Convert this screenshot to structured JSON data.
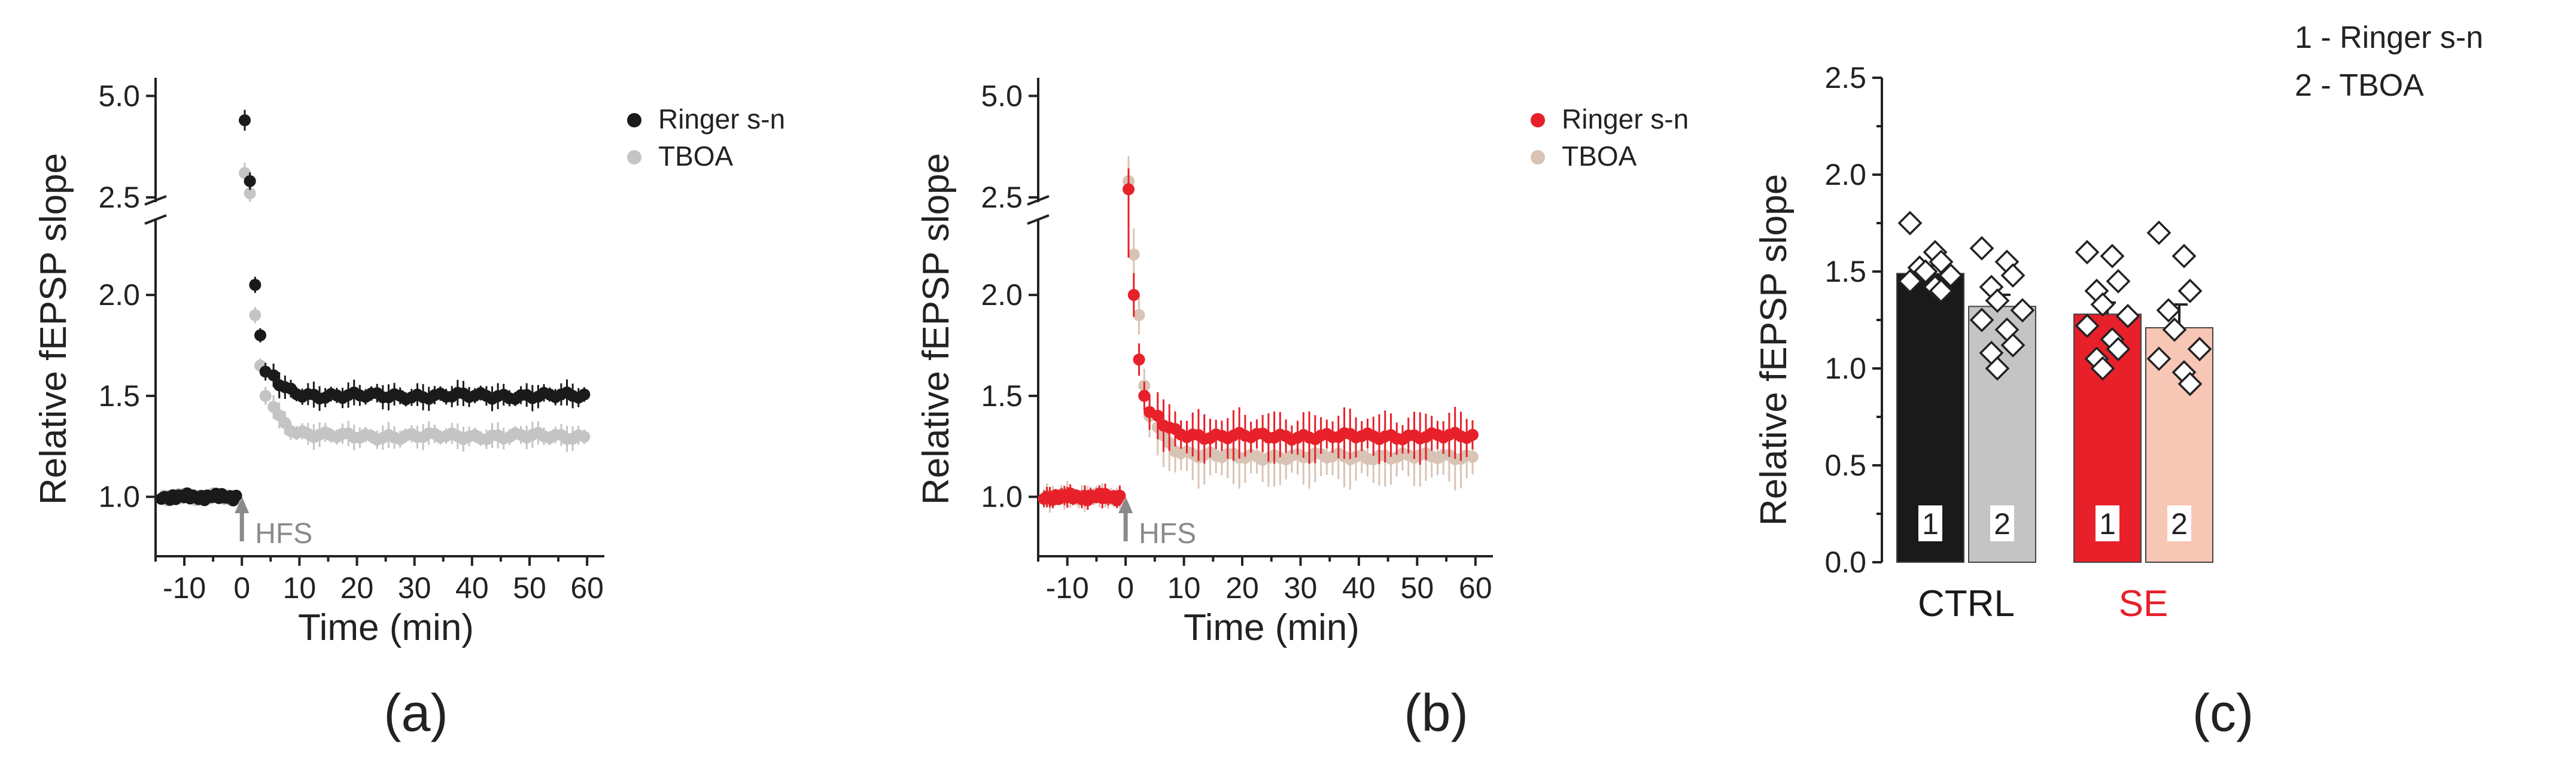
{
  "chart_data": [
    {
      "panel": "(a)",
      "type": "scatter",
      "xlabel": "Time (min)",
      "ylabel": "Relative fEPSP slope",
      "xlim": [
        -15,
        63
      ],
      "xticks": [
        -10,
        0,
        10,
        20,
        30,
        40,
        50,
        60
      ],
      "xtick_labels": [
        "-10",
        "0",
        "10",
        "20",
        "30",
        "40",
        "50",
        "60"
      ],
      "ylim_lower": [
        0.75,
        2.35
      ],
      "ylim_upper": [
        2.5,
        5.3
      ],
      "yticks": [
        1.0,
        1.5,
        2.0,
        2.5,
        5.0
      ],
      "ytick_labels": [
        "1.0",
        "1.5",
        "2.0",
        "2.5",
        "5.0"
      ],
      "axis_break": "between 2.0 and 2.5",
      "annotation": "HFS",
      "annotation_x": 0,
      "legend": [
        "Ringer s-n",
        "TBOA"
      ],
      "series": [
        {
          "name": "Ringer s-n",
          "color": "#1a1a1a",
          "baseline": 1.0,
          "peak": [
            4.4,
            2.9,
            2.05,
            1.8,
            1.62
          ],
          "plateau": 1.5,
          "err": 0.05
        },
        {
          "name": "TBOA",
          "color": "#c4c4c4",
          "baseline": 1.0,
          "peak": [
            3.1,
            2.6,
            1.9,
            1.65,
            1.5
          ],
          "plateau": 1.3,
          "err": 0.05
        }
      ]
    },
    {
      "panel": "(b)",
      "type": "scatter",
      "xlabel": "Time (min)",
      "ylabel": "Relative fEPSP slope",
      "xlim": [
        -15,
        63
      ],
      "xticks": [
        -10,
        0,
        10,
        20,
        30,
        40,
        50,
        60
      ],
      "xtick_labels": [
        "-10",
        "0",
        "10",
        "20",
        "30",
        "40",
        "50",
        "60"
      ],
      "ylim_lower": [
        0.75,
        2.35
      ],
      "ylim_upper": [
        2.5,
        5.3
      ],
      "yticks": [
        1.0,
        1.5,
        2.0,
        2.5,
        5.0
      ],
      "ytick_labels": [
        "1.0",
        "1.5",
        "2.0",
        "2.5",
        "5.0"
      ],
      "axis_break": "between 2.0 and 2.5",
      "annotation": "HFS",
      "annotation_x": 0,
      "legend": [
        "Ringer s-n",
        "TBOA"
      ],
      "series": [
        {
          "name": "Ringer s-n",
          "color": "#e8202a",
          "baseline": 1.0,
          "peak": [
            2.7,
            2.0,
            1.68,
            1.5,
            1.42
          ],
          "plateau": 1.3,
          "err": 0.1
        },
        {
          "name": "TBOA",
          "color": "#d9c3b4",
          "baseline": 1.0,
          "peak": [
            2.9,
            2.2,
            1.9,
            1.55,
            1.4
          ],
          "plateau": 1.2,
          "err": 0.12
        }
      ]
    },
    {
      "panel": "(c)",
      "type": "bar",
      "ylabel": "Relative fEPSP slope",
      "ylim": [
        0.0,
        2.5
      ],
      "yticks": [
        0.0,
        0.5,
        1.0,
        1.5,
        2.0,
        2.5
      ],
      "ytick_labels": [
        "0.0",
        "0.5",
        "1.0",
        "1.5",
        "2.0",
        "2.5"
      ],
      "legend_lines": [
        "1 - Ringer s-n",
        "2 - TBOA"
      ],
      "groups": [
        {
          "label": "CTRL",
          "label_color": "#1a1a1a"
        },
        {
          "label": "SE",
          "label_color": "#e8202a"
        }
      ],
      "bars": [
        {
          "group": "CTRL",
          "code": "1",
          "value": 1.49,
          "err": 0.04,
          "color": "#1a1a1a",
          "points": [
            1.75,
            1.6,
            1.55,
            1.52,
            1.5,
            1.48,
            1.45,
            1.42,
            1.4
          ]
        },
        {
          "group": "CTRL",
          "code": "2",
          "value": 1.32,
          "err": 0.06,
          "color": "#c4c4c4",
          "points": [
            1.62,
            1.55,
            1.48,
            1.42,
            1.35,
            1.3,
            1.25,
            1.2,
            1.12,
            1.08,
            1.0
          ]
        },
        {
          "group": "SE",
          "code": "1",
          "value": 1.28,
          "err": 0.06,
          "color": "#e8202a",
          "points": [
            1.6,
            1.58,
            1.45,
            1.4,
            1.33,
            1.27,
            1.22,
            1.15,
            1.1,
            1.05,
            1.0
          ]
        },
        {
          "group": "SE",
          "code": "2",
          "value": 1.21,
          "err": 0.12,
          "color": "#f7c6b4",
          "points": [
            1.7,
            1.58,
            1.4,
            1.3,
            1.2,
            1.1,
            1.05,
            0.98,
            0.92
          ]
        }
      ]
    }
  ]
}
